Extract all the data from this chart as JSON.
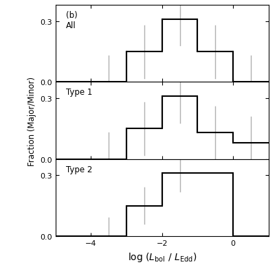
{
  "bin_edges": [
    -5,
    -4,
    -3,
    -2,
    -1,
    0,
    1
  ],
  "all_values": [
    0.0,
    0.0,
    0.15,
    0.31,
    0.15,
    0.0
  ],
  "all_errors": [
    0.0,
    0.13,
    0.13,
    0.13,
    0.13,
    0.13
  ],
  "all_err_centers": [
    -4.5,
    -3.5,
    -2.5,
    -1.5,
    -0.5,
    0.5
  ],
  "type1_values": [
    0.0,
    0.0,
    0.15,
    0.31,
    0.13,
    0.08
  ],
  "type1_errors": [
    0.0,
    0.13,
    0.13,
    0.13,
    0.13,
    0.13
  ],
  "type1_err_centers": [
    -4.5,
    -3.5,
    -2.5,
    -1.5,
    -0.5,
    0.5
  ],
  "type2_values": [
    0.0,
    0.0,
    0.15,
    0.31,
    0.31,
    0.0
  ],
  "type2_errors": [
    0.0,
    0.09,
    0.09,
    0.09,
    0.0,
    0.0
  ],
  "type2_err_centers": [
    -4.5,
    -3.5,
    -2.5,
    -1.5,
    -0.5,
    0.5
  ],
  "xlim": [
    -5,
    1
  ],
  "ylim": [
    0.0,
    0.38
  ],
  "yticks": [
    0.0,
    0.3
  ],
  "xticks": [
    -4,
    -2,
    0
  ],
  "ylabel": "Fraction (Major/Minor)",
  "label_all": "(b)\nAll",
  "label_type1": "Type 1",
  "label_type2": "Type 2",
  "hist_color": "black",
  "err_color": "#b0b0b0",
  "linewidth": 1.5
}
